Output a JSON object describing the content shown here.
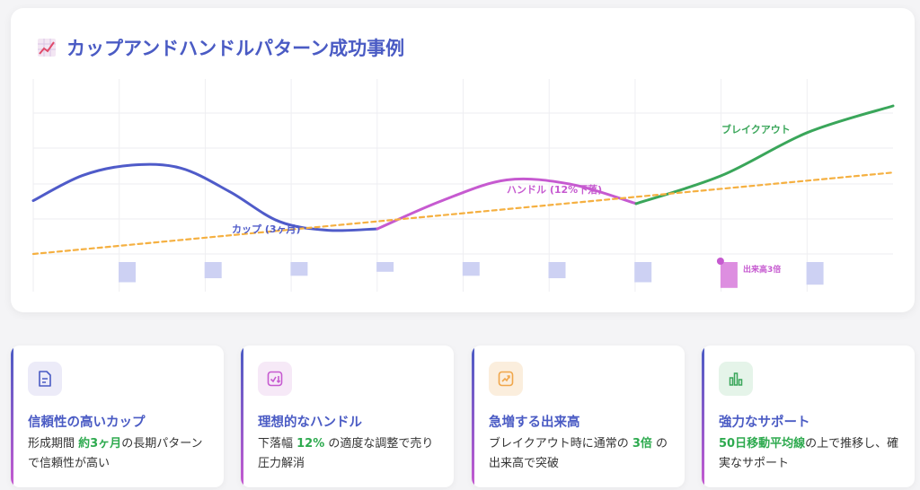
{
  "title": {
    "icon": "chart-increasing-icon",
    "text": "カップアンドハンドルパターン成功事例"
  },
  "annotations": {
    "cup": "カップ (3ヶ月)",
    "handle": "ハンドル (12%下落)",
    "breakout": "ブレイクアウト",
    "volume": "出来高3倍"
  },
  "colors": {
    "title": "#4a5bc4",
    "cup": "#4f5bc9",
    "handle": "#c65ad0",
    "breakout": "#3aa65a",
    "moving_average": "#f5b041",
    "volume": "#cdd1f3",
    "volume_spike": "#dd8ee0",
    "highlight": "#2eaa4f"
  },
  "chart_data": {
    "type": "line",
    "series": [
      {
        "name": "",
        "segment": "cup",
        "values": [
          0.36,
          0.53,
          0.6,
          0.58,
          0.42,
          0.22,
          0.16,
          0.17
        ]
      },
      {
        "name": "",
        "segment": "handle",
        "values": [
          0.17,
          0.36,
          0.5,
          0.47,
          0.34
        ]
      },
      {
        "name": "",
        "segment": "breakout",
        "values": [
          0.34,
          0.53,
          0.82,
          1.0
        ]
      },
      {
        "name": "",
        "segment": "moving-average",
        "values": [
          0.0,
          0.55
        ]
      }
    ],
    "volume": {
      "values": [
        0.25,
        0.2,
        0.17,
        0.12,
        0.17,
        0.2,
        0.25,
        0.32,
        0.28
      ],
      "spike_index": 7
    },
    "grid": true
  },
  "cards": [
    {
      "icon": "document-chart-icon",
      "title": "信頼性の高いカップ",
      "desc_pre": "形成期間 ",
      "desc_hl": "約3ヶ月",
      "desc_post": "の長期パターンで信頼性が高い"
    },
    {
      "icon": "check-down-icon",
      "title": "理想的なハンドル",
      "desc_pre": "下落幅 ",
      "desc_hl": "12%",
      "desc_post": " の適度な調整で売り圧力解消"
    },
    {
      "icon": "trend-up-icon",
      "title": "急増する出来高",
      "desc_pre": "ブレイクアウト時に通常の ",
      "desc_hl": "3倍",
      "desc_post": " の出来高で突破"
    },
    {
      "icon": "bar-chart-icon",
      "title": "強力なサポート",
      "desc_pre": "",
      "desc_hl": "50日移動平均線",
      "desc_post": "の上で推移し、確実なサポート"
    }
  ]
}
